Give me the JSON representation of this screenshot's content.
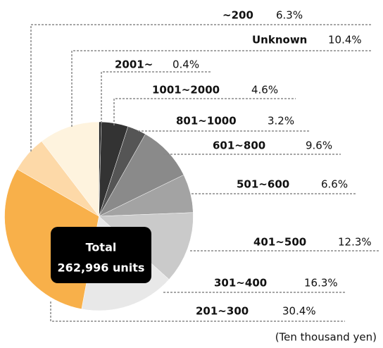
{
  "chart_data": {
    "type": "pie",
    "categories": [
      "2001~",
      "1001~2000",
      "801~1000",
      "601~800",
      "501~600",
      "401~500",
      "301~400",
      "201~300",
      "~200",
      "Unknown"
    ],
    "values": [
      0.4,
      4.6,
      3.2,
      9.6,
      6.6,
      12.3,
      16.3,
      30.4,
      6.3,
      10.4
    ],
    "value_labels": [
      "0.4%",
      "4.6%",
      "3.2%",
      "9.6%",
      "6.6%",
      "12.3%",
      "16.3%",
      "30.4%",
      "6.3%",
      "10.4%"
    ],
    "colors": [
      "#1e1e1e",
      "#333333",
      "#555555",
      "#8a8a8a",
      "#a3a3a3",
      "#cacaca",
      "#e8e8e8",
      "#f8b04a",
      "#fdd9a8",
      "#fef3de"
    ],
    "center_label": [
      "Total",
      "262,996 units"
    ],
    "note": "(Ten thousand yen)"
  }
}
